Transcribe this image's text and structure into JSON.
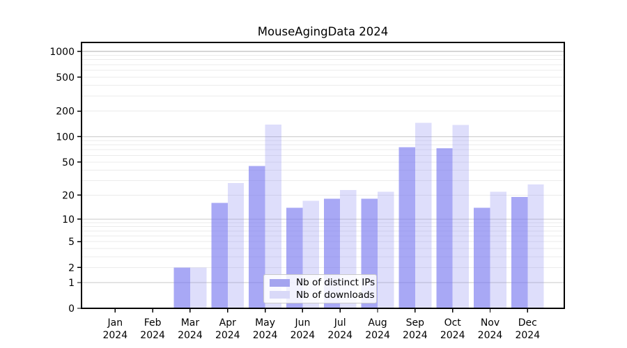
{
  "title": "MouseAgingData 2024",
  "chart_data": {
    "type": "bar",
    "title": "MouseAgingData 2024",
    "categories": [
      "Jan",
      "Feb",
      "Mar",
      "Apr",
      "May",
      "Jun",
      "Jul",
      "Aug",
      "Sep",
      "Oct",
      "Nov",
      "Dec"
    ],
    "category_year": "2024",
    "series": [
      {
        "name": "Nb of distinct IPs",
        "color": "rgba(122,122,240,0.65)",
        "swatch": "#a4a4ef",
        "values": [
          0,
          0,
          2,
          16,
          45,
          14,
          18,
          18,
          75,
          73,
          14,
          19
        ]
      },
      {
        "name": "Nb of downloads",
        "color": "rgba(122,122,240,0.25)",
        "swatch": "#d9d9f8",
        "values": [
          0,
          0,
          2,
          28,
          139,
          17,
          23,
          22,
          146,
          137,
          22,
          27
        ]
      }
    ],
    "yscale": "log1p",
    "ylim": [
      0,
      1270
    ],
    "yticks": [
      0,
      1,
      2,
      5,
      10,
      20,
      50,
      100,
      200,
      500,
      1000
    ],
    "ytick_labels": [
      "0",
      "1",
      "2",
      "5",
      "10",
      "20",
      "50",
      "100",
      "200",
      "500",
      "1000"
    ],
    "major_gridlines": [
      1,
      10,
      100,
      1000
    ],
    "minor_gridlines": [
      2,
      3,
      4,
      5,
      6,
      7,
      8,
      9,
      20,
      30,
      40,
      50,
      60,
      70,
      80,
      90,
      200,
      300,
      400,
      500,
      600,
      700,
      800,
      900
    ],
    "grid": true,
    "legend_position": "lower center",
    "colors": {
      "major_grid": "#c9c9c9",
      "minor_grid": "#ebebeb",
      "axis": "#000000",
      "text": "#000000",
      "background": "#ffffff"
    }
  }
}
